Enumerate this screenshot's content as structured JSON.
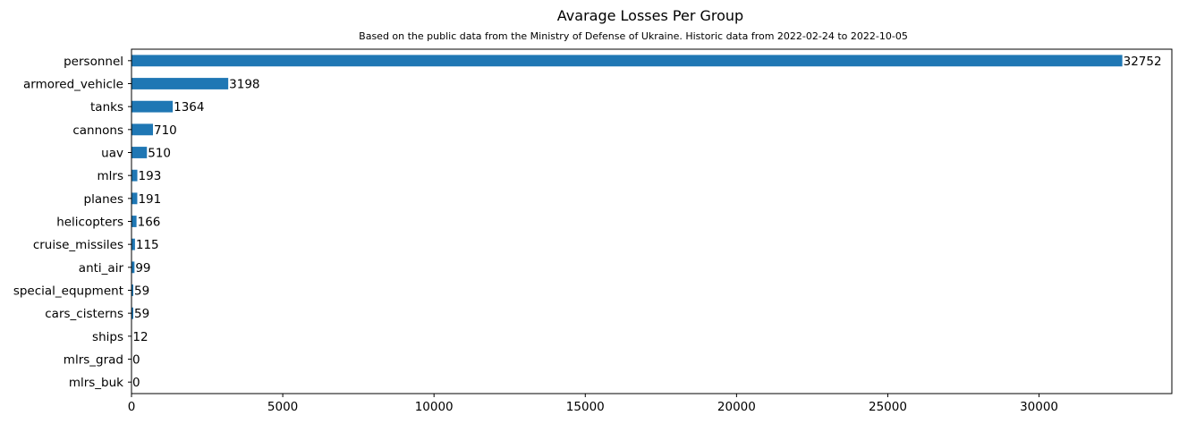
{
  "chart_data": {
    "type": "bar",
    "orientation": "horizontal",
    "title": "Avarage Losses Per Group",
    "subtitle": "Based on the public data from the Ministry of Defense of Ukraine. Historic data from 2022-02-24 to 2022-10-05",
    "xlabel": "",
    "ylabel": "",
    "categories": [
      "personnel",
      "armored_vehicle",
      "tanks",
      "cannons",
      "uav",
      "mlrs",
      "planes",
      "helicopters",
      "cruise_missiles",
      "anti_air",
      "special_equpment",
      "cars_cisterns",
      "ships",
      "mlrs_grad",
      "mlrs_buk"
    ],
    "values": [
      32752,
      3198,
      1364,
      710,
      510,
      193,
      191,
      166,
      115,
      99,
      59,
      59,
      12,
      0,
      0
    ],
    "data_labels": [
      "32752",
      "3198",
      "1364",
      "710",
      "510",
      "193",
      "191",
      "166",
      "115",
      "99",
      "59",
      "59",
      "12",
      "0",
      "0"
    ],
    "xlim": [
      0,
      34389
    ],
    "xticks": [
      0,
      5000,
      10000,
      15000,
      20000,
      25000,
      30000
    ],
    "xtick_labels": [
      "0",
      "5000",
      "10000",
      "15000",
      "20000",
      "25000",
      "30000"
    ],
    "grid": false,
    "legend": "none",
    "bar_color": "#1f77b4"
  }
}
